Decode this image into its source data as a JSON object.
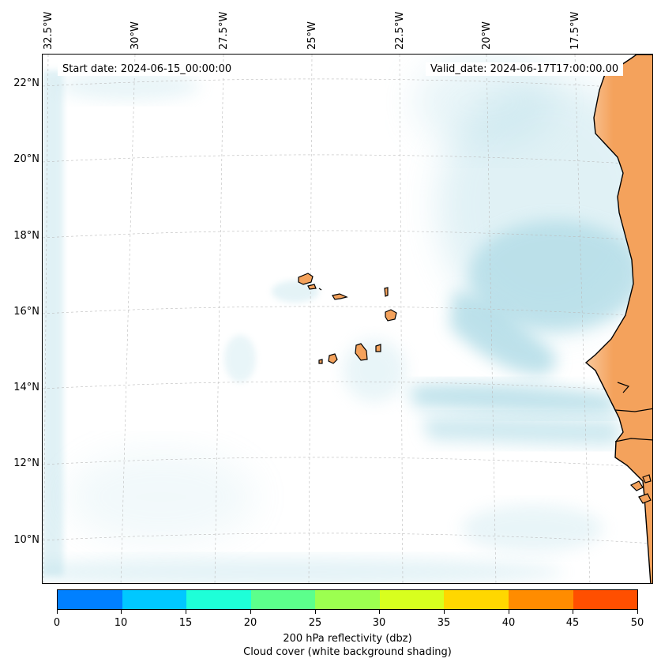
{
  "map": {
    "start_date_text": "Start date: 2024-06-15_00:00:00",
    "valid_date_text": "Valid_date: 2024-06-17T17:00:00.00",
    "longitude_labels": [
      "32.5°W",
      "30°W",
      "27.5°W",
      "25°W",
      "22.5°W",
      "20°W",
      "17.5°W"
    ],
    "latitude_labels": [
      "22°N",
      "20°N",
      "18°N",
      "16°N",
      "14°N",
      "12°N",
      "10°N"
    ],
    "colors": {
      "cloud": "#a8d8e4",
      "land": "#f4a25c",
      "coastline": "#000000",
      "grid": "#bbbbbb"
    }
  },
  "colorbar": {
    "tick_labels": [
      "0",
      "10",
      "15",
      "20",
      "25",
      "30",
      "35",
      "40",
      "45",
      "50"
    ],
    "colors": [
      "#0080ff",
      "#00c8ff",
      "#1effd8",
      "#5cff8c",
      "#9cff50",
      "#d8ff1e",
      "#ffd700",
      "#ff8c00",
      "#ff4f00"
    ],
    "title_line1": "200 hPa reflectivity (dbz)",
    "title_line2": "Cloud cover (white background shading)"
  }
}
